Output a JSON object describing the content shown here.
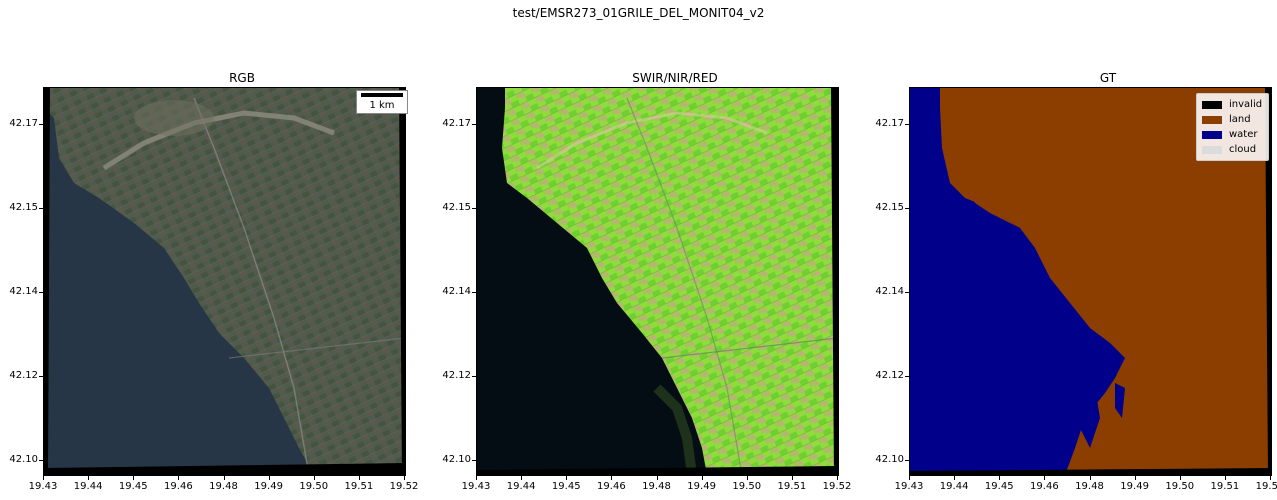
{
  "figure": {
    "title": "test/EMSR273_01GRILE_DEL_MONIT04_v2"
  },
  "panels": [
    {
      "title": "RGB"
    },
    {
      "title": "SWIR/NIR/RED"
    },
    {
      "title": "GT"
    }
  ],
  "axes": {
    "y_ticks": [
      "42.17",
      "42.15",
      "42.14",
      "42.12",
      "42.10"
    ],
    "x_ticks": [
      "19.43",
      "19.44",
      "19.45",
      "19.46",
      "19.48",
      "19.49",
      "19.50",
      "19.51",
      "19.52"
    ]
  },
  "scale_bar": {
    "label": "1 km"
  },
  "legend": {
    "items": [
      {
        "label": "invalid",
        "color": "#000000"
      },
      {
        "label": "land",
        "color": "#8b3e00"
      },
      {
        "label": "water",
        "color": "#00008b"
      },
      {
        "label": "cloud",
        "color": "#dcdcdc"
      }
    ]
  },
  "colors": {
    "rgb_water": "#263646",
    "rgb_land": "#4f5b4e",
    "false_water": "#050d14",
    "false_land": "#8edd3c"
  }
}
